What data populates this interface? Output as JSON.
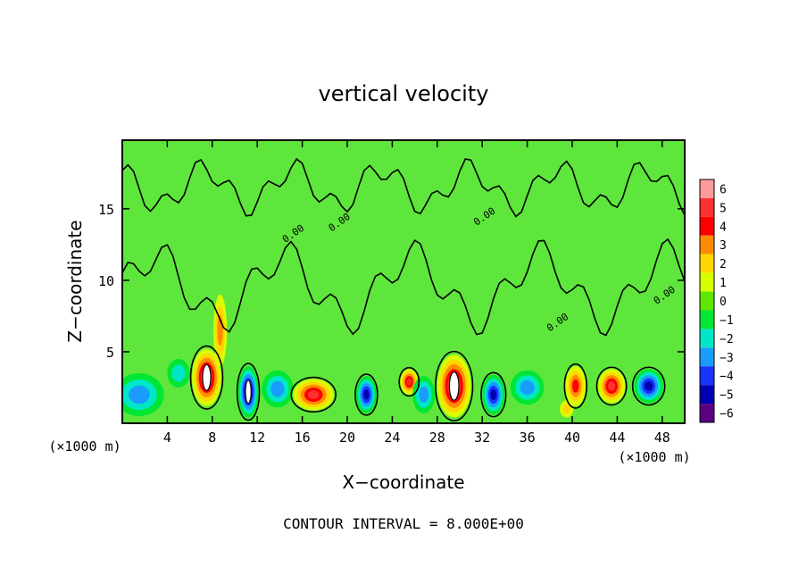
{
  "chart_data": {
    "type": "heatmap",
    "title": "vertical velocity",
    "xlabel": "X−coordinate",
    "ylabel": "Z−coordinate",
    "x_unit": "(×1000 m)",
    "x_unit_right": "(×1000 m)",
    "xlim": [
      0,
      50
    ],
    "ylim": [
      0,
      19.8
    ],
    "x_ticks": [
      4,
      8,
      12,
      16,
      20,
      24,
      28,
      32,
      36,
      40,
      44,
      48
    ],
    "x_tick_labels": [
      "4",
      "8",
      "12",
      "16",
      "20",
      "24",
      "28",
      "32",
      "36",
      "40",
      "44",
      "48"
    ],
    "y_ticks": [
      5,
      10,
      15
    ],
    "y_tick_labels": [
      "5",
      "10",
      "15"
    ],
    "grid": false,
    "footer": "CONTOUR INTERVAL = 8.000E+00",
    "contour_label": "0.00",
    "colorbar": {
      "levels": [
        6,
        5,
        4,
        3,
        2,
        1,
        0,
        -1,
        -2,
        -3,
        -4,
        -5,
        -6
      ],
      "labels": [
        "6",
        "5",
        "4",
        "3",
        "2",
        "1",
        "0",
        "−1",
        "−2",
        "−3",
        "−4",
        "−5",
        "−6"
      ],
      "colors": [
        "#ff9a9a",
        "#ff3030",
        "#ff0000",
        "#ff8c00",
        "#ffd700",
        "#d8ff00",
        "#5ce600",
        "#00e633",
        "#00e6c8",
        "#1a9cff",
        "#1a34ff",
        "#0000b0",
        "#5a0080"
      ],
      "position": "right"
    },
    "background_color": "#5ee63c",
    "features": [
      {
        "type": "updraft",
        "x": 7.5,
        "z": 3.2,
        "peak": 6,
        "wx": 1.3,
        "wz": 2.0
      },
      {
        "type": "updraft",
        "x": 8.7,
        "z": 6.5,
        "peak": 2.5,
        "wx": 0.6,
        "wz": 2.5
      },
      {
        "type": "downdraft",
        "x": 11.2,
        "z": 2.2,
        "peak": -6,
        "wx": 0.9,
        "wz": 1.8
      },
      {
        "type": "updraft",
        "x": 17.0,
        "z": 2.0,
        "peak": 4.6,
        "wx": 1.8,
        "wz": 1.1
      },
      {
        "type": "downdraft",
        "x": 21.7,
        "z": 2.0,
        "peak": -5.4,
        "wx": 0.9,
        "wz": 1.3
      },
      {
        "type": "updraft",
        "x": 25.5,
        "z": 2.9,
        "peak": 4.6,
        "wx": 0.8,
        "wz": 0.9
      },
      {
        "type": "downdraft",
        "x": 26.8,
        "z": 2.0,
        "peak": -3.2,
        "wx": 1.0,
        "wz": 1.3
      },
      {
        "type": "updraft",
        "x": 29.5,
        "z": 2.6,
        "peak": 6,
        "wx": 1.5,
        "wz": 2.2
      },
      {
        "type": "downdraft",
        "x": 33.0,
        "z": 2.0,
        "peak": -5.4,
        "wx": 1.0,
        "wz": 1.4
      },
      {
        "type": "downdraft",
        "x": 36.0,
        "z": 2.5,
        "peak": -2.6,
        "wx": 1.5,
        "wz": 1.2
      },
      {
        "type": "updraft",
        "x": 40.3,
        "z": 2.6,
        "peak": 4.2,
        "wx": 0.9,
        "wz": 1.4
      },
      {
        "type": "updraft",
        "x": 43.5,
        "z": 2.6,
        "peak": 5.2,
        "wx": 1.2,
        "wz": 1.2
      },
      {
        "type": "updraft",
        "x": 39.5,
        "z": 1.0,
        "peak": 1.6,
        "wx": 0.6,
        "wz": 0.6
      },
      {
        "type": "downdraft",
        "x": 46.8,
        "z": 2.6,
        "peak": -4.8,
        "wx": 1.3,
        "wz": 1.2
      },
      {
        "type": "downdraft",
        "x": 1.5,
        "z": 2.0,
        "peak": -2.6,
        "wx": 2.2,
        "wz": 1.5
      },
      {
        "type": "downdraft",
        "x": 13.8,
        "z": 2.4,
        "peak": -2.8,
        "wx": 1.4,
        "wz": 1.3
      },
      {
        "type": "downdraft",
        "x": 5.0,
        "z": 3.5,
        "peak": -2.0,
        "wx": 1.0,
        "wz": 1.0
      }
    ]
  }
}
